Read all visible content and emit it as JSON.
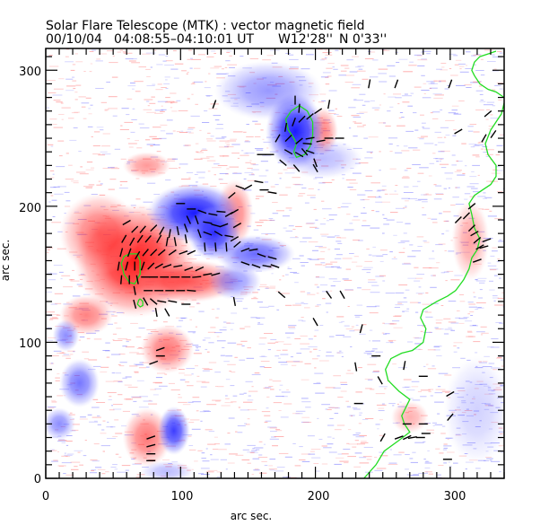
{
  "chart_data": {
    "type": "heatmap",
    "title": "Solar Flare Telescope (MTK) : vector magnetic field",
    "subtitle": {
      "date": "00/10/04",
      "time_range": "04:08:55–04:10:01 UT",
      "position_w": "W12'28''",
      "position_n": "N 0'33''"
    },
    "xlabel": "arc sec.",
    "ylabel": "arc sec.",
    "xlim": [
      0,
      340
    ],
    "ylim": [
      0,
      316
    ],
    "xticks": [
      0,
      100,
      200,
      300
    ],
    "yticks": [
      0,
      100,
      200,
      300
    ],
    "xtick_labels": [
      "0",
      "100",
      "200",
      "300"
    ],
    "ytick_labels": [
      "0",
      "100",
      "200",
      "300"
    ],
    "minor_tick_step": 10,
    "colors": {
      "positive_polarity": "#ff2020",
      "negative_polarity": "#2020ff",
      "contour": "#22dd22",
      "vector": "#000000"
    },
    "polarity_regions": [
      {
        "polarity": "positive",
        "x": 66,
        "y": 160,
        "rx": 45,
        "ry": 42,
        "strength": 1.0
      },
      {
        "polarity": "positive",
        "x": 40,
        "y": 180,
        "rx": 30,
        "ry": 30,
        "strength": 0.6
      },
      {
        "polarity": "positive",
        "x": 105,
        "y": 145,
        "rx": 40,
        "ry": 16,
        "strength": 0.75
      },
      {
        "polarity": "positive",
        "x": 30,
        "y": 120,
        "rx": 20,
        "ry": 15,
        "strength": 0.55
      },
      {
        "polarity": "positive",
        "x": 75,
        "y": 230,
        "rx": 18,
        "ry": 10,
        "strength": 0.45
      },
      {
        "polarity": "positive",
        "x": 90,
        "y": 95,
        "rx": 20,
        "ry": 18,
        "strength": 0.6
      },
      {
        "polarity": "positive",
        "x": 75,
        "y": 30,
        "rx": 18,
        "ry": 22,
        "strength": 0.6
      },
      {
        "polarity": "positive",
        "x": 140,
        "y": 195,
        "rx": 14,
        "ry": 25,
        "strength": 0.55
      },
      {
        "polarity": "positive",
        "x": 205,
        "y": 255,
        "rx": 12,
        "ry": 18,
        "strength": 0.55
      },
      {
        "polarity": "positive",
        "x": 315,
        "y": 175,
        "rx": 14,
        "ry": 30,
        "strength": 0.4
      },
      {
        "polarity": "positive",
        "x": 270,
        "y": 45,
        "rx": 14,
        "ry": 12,
        "strength": 0.35
      },
      {
        "polarity": "negative",
        "x": 110,
        "y": 195,
        "rx": 35,
        "ry": 22,
        "strength": 1.0
      },
      {
        "polarity": "negative",
        "x": 125,
        "y": 180,
        "rx": 20,
        "ry": 20,
        "strength": 0.9
      },
      {
        "polarity": "negative",
        "x": 185,
        "y": 255,
        "rx": 22,
        "ry": 28,
        "strength": 1.0
      },
      {
        "polarity": "negative",
        "x": 165,
        "y": 285,
        "rx": 40,
        "ry": 22,
        "strength": 0.45
      },
      {
        "polarity": "negative",
        "x": 155,
        "y": 165,
        "rx": 30,
        "ry": 14,
        "strength": 0.65
      },
      {
        "polarity": "negative",
        "x": 140,
        "y": 145,
        "rx": 20,
        "ry": 14,
        "strength": 0.45
      },
      {
        "polarity": "negative",
        "x": 95,
        "y": 35,
        "rx": 12,
        "ry": 18,
        "strength": 0.85
      },
      {
        "polarity": "negative",
        "x": 25,
        "y": 70,
        "rx": 15,
        "ry": 18,
        "strength": 0.6
      },
      {
        "polarity": "negative",
        "x": 15,
        "y": 105,
        "rx": 10,
        "ry": 12,
        "strength": 0.5
      },
      {
        "polarity": "negative",
        "x": 10,
        "y": 40,
        "rx": 12,
        "ry": 12,
        "strength": 0.5
      },
      {
        "polarity": "negative",
        "x": 205,
        "y": 235,
        "rx": 30,
        "ry": 15,
        "strength": 0.3
      },
      {
        "polarity": "negative",
        "x": 320,
        "y": 50,
        "rx": 25,
        "ry": 40,
        "strength": 0.2
      },
      {
        "polarity": "negative",
        "x": 90,
        "y": 5,
        "rx": 20,
        "ry": 8,
        "strength": 0.3
      }
    ],
    "vectors": [
      [
        60,
        188,
        30
      ],
      [
        66,
        183,
        45
      ],
      [
        72,
        183,
        50
      ],
      [
        80,
        184,
        45
      ],
      [
        86,
        182,
        60
      ],
      [
        92,
        180,
        80
      ],
      [
        98,
        182,
        100
      ],
      [
        58,
        176,
        60
      ],
      [
        64,
        174,
        60
      ],
      [
        70,
        176,
        55
      ],
      [
        76,
        176,
        50
      ],
      [
        84,
        176,
        60
      ],
      [
        90,
        174,
        80
      ],
      [
        96,
        174,
        100
      ],
      [
        104,
        176,
        100
      ],
      [
        56,
        166,
        75
      ],
      [
        62,
        166,
        70
      ],
      [
        68,
        164,
        60
      ],
      [
        74,
        166,
        50
      ],
      [
        80,
        166,
        45
      ],
      [
        86,
        166,
        40
      ],
      [
        94,
        166,
        35
      ],
      [
        102,
        166,
        20
      ],
      [
        108,
        166,
        25
      ],
      [
        54,
        156,
        80
      ],
      [
        60,
        156,
        75
      ],
      [
        66,
        156,
        90
      ],
      [
        72,
        156,
        70
      ],
      [
        78,
        156,
        45
      ],
      [
        84,
        156,
        30
      ],
      [
        90,
        156,
        20
      ],
      [
        98,
        156,
        10
      ],
      [
        106,
        154,
        20
      ],
      [
        114,
        154,
        25
      ],
      [
        56,
        146,
        85
      ],
      [
        62,
        146,
        90
      ],
      [
        68,
        146,
        100
      ],
      [
        74,
        148,
        0
      ],
      [
        80,
        148,
        0
      ],
      [
        88,
        148,
        0
      ],
      [
        96,
        148,
        0
      ],
      [
        104,
        148,
        0
      ],
      [
        112,
        148,
        5
      ],
      [
        120,
        150,
        10
      ],
      [
        126,
        150,
        15
      ],
      [
        66,
        138,
        100
      ],
      [
        76,
        138,
        0
      ],
      [
        84,
        138,
        0
      ],
      [
        92,
        138,
        0
      ],
      [
        100,
        138,
        0
      ],
      [
        108,
        138,
        -5
      ],
      [
        66,
        128,
        105
      ],
      [
        74,
        130,
        120
      ],
      [
        80,
        130,
        140
      ],
      [
        86,
        130,
        -10
      ],
      [
        94,
        130,
        -10
      ],
      [
        104,
        128,
        0
      ],
      [
        82,
        122,
        100
      ],
      [
        90,
        122,
        120
      ],
      [
        100,
        202,
        0
      ],
      [
        108,
        198,
        0
      ],
      [
        116,
        196,
        -20
      ],
      [
        124,
        194,
        -10
      ],
      [
        130,
        196,
        -5
      ],
      [
        136,
        194,
        30
      ],
      [
        106,
        190,
        115
      ],
      [
        112,
        190,
        110
      ],
      [
        120,
        188,
        -10
      ],
      [
        126,
        186,
        -15
      ],
      [
        132,
        186,
        20
      ],
      [
        104,
        184,
        110
      ],
      [
        114,
        180,
        110
      ],
      [
        120,
        180,
        -20
      ],
      [
        128,
        180,
        -30
      ],
      [
        136,
        178,
        -10
      ],
      [
        118,
        170,
        95
      ],
      [
        126,
        170,
        95
      ],
      [
        134,
        170,
        95
      ],
      [
        142,
        172,
        40
      ],
      [
        148,
        168,
        20
      ],
      [
        154,
        168,
        10
      ],
      [
        160,
        164,
        -20
      ],
      [
        168,
        162,
        -15
      ],
      [
        148,
        158,
        -20
      ],
      [
        156,
        156,
        -20
      ],
      [
        164,
        156,
        -10
      ],
      [
        170,
        156,
        -20
      ],
      [
        140,
        196,
        30
      ],
      [
        138,
        208,
        40
      ],
      [
        144,
        214,
        -20
      ],
      [
        150,
        214,
        30
      ],
      [
        162,
        212,
        0
      ],
      [
        168,
        210,
        -10
      ],
      [
        140,
        176,
        30
      ],
      [
        142,
        186,
        30
      ],
      [
        178,
        258,
        80
      ],
      [
        184,
        262,
        70
      ],
      [
        190,
        264,
        45
      ],
      [
        196,
        266,
        40
      ],
      [
        202,
        270,
        35
      ],
      [
        172,
        250,
        60
      ],
      [
        180,
        250,
        45
      ],
      [
        188,
        248,
        40
      ],
      [
        196,
        250,
        10
      ],
      [
        204,
        248,
        10
      ],
      [
        180,
        240,
        -30
      ],
      [
        188,
        238,
        -30
      ],
      [
        196,
        240,
        -20
      ],
      [
        200,
        232,
        -70
      ],
      [
        188,
        272,
        85
      ],
      [
        194,
        246,
        -5
      ],
      [
        176,
        232,
        -40
      ],
      [
        186,
        228,
        -50
      ],
      [
        200,
        228,
        -60
      ],
      [
        160,
        238,
        0
      ],
      [
        166,
        238,
        0
      ],
      [
        210,
        250,
        0
      ],
      [
        218,
        250,
        0
      ],
      [
        158,
        218,
        -10
      ],
      [
        85,
        95,
        20
      ],
      [
        85,
        90,
        0
      ],
      [
        80,
        85,
        20
      ],
      [
        78,
        30,
        20
      ],
      [
        78,
        24,
        15
      ],
      [
        78,
        18,
        0
      ],
      [
        78,
        13,
        0
      ],
      [
        125,
        275,
        70
      ],
      [
        185,
        278,
        90
      ],
      [
        192,
        240,
        -50
      ],
      [
        175,
        135,
        -40
      ],
      [
        210,
        135,
        -55
      ],
      [
        220,
        135,
        -60
      ],
      [
        140,
        130,
        -80
      ],
      [
        200,
        115,
        -60
      ],
      [
        266,
        83,
        80
      ],
      [
        210,
        275,
        80
      ],
      [
        230,
        82,
        -80
      ],
      [
        245,
        90,
        0
      ],
      [
        280,
        75,
        0
      ],
      [
        262,
        30,
        20
      ],
      [
        268,
        30,
        25
      ],
      [
        272,
        30,
        10
      ],
      [
        278,
        30,
        0
      ],
      [
        282,
        33,
        0
      ],
      [
        268,
        40,
        0
      ],
      [
        280,
        40,
        0
      ],
      [
        300,
        62,
        30
      ],
      [
        300,
        45,
        50
      ],
      [
        234,
        110,
        75
      ],
      [
        248,
        72,
        -60
      ],
      [
        298,
        14,
        0
      ],
      [
        320,
        160,
        20
      ],
      [
        322,
        170,
        30
      ],
      [
        318,
        180,
        30
      ],
      [
        320,
        175,
        40
      ],
      [
        316,
        184,
        45
      ],
      [
        325,
        170,
        15
      ],
      [
        327,
        175,
        20
      ],
      [
        316,
        200,
        40
      ],
      [
        312,
        193,
        45
      ],
      [
        306,
        190,
        45
      ],
      [
        332,
        253,
        55
      ],
      [
        325,
        250,
        60
      ],
      [
        328,
        268,
        40
      ],
      [
        306,
        255,
        30
      ],
      [
        300,
        290,
        70
      ],
      [
        260,
        290,
        70
      ],
      [
        240,
        290,
        80
      ],
      [
        232,
        55,
        0
      ],
      [
        250,
        30,
        60
      ]
    ],
    "contours": [
      {
        "label": "limb",
        "points": [
          [
            236,
            0
          ],
          [
            245,
            10
          ],
          [
            251,
            20
          ],
          [
            262,
            28
          ],
          [
            270,
            34
          ],
          [
            266,
            40
          ],
          [
            264,
            46
          ],
          [
            270,
            58
          ],
          [
            262,
            64
          ],
          [
            254,
            72
          ],
          [
            252,
            80
          ],
          [
            256,
            88
          ],
          [
            264,
            92
          ],
          [
            272,
            94
          ],
          [
            280,
            100
          ],
          [
            282,
            110
          ],
          [
            278,
            118
          ],
          [
            280,
            124
          ],
          [
            290,
            130
          ],
          [
            298,
            134
          ],
          [
            304,
            138
          ],
          [
            310,
            146
          ],
          [
            314,
            154
          ],
          [
            316,
            162
          ],
          [
            320,
            168
          ],
          [
            322,
            176
          ],
          [
            318,
            184
          ],
          [
            316,
            194
          ],
          [
            314,
            202
          ],
          [
            318,
            208
          ],
          [
            324,
            212
          ],
          [
            330,
            216
          ],
          [
            334,
            222
          ],
          [
            334,
            230
          ],
          [
            328,
            238
          ],
          [
            326,
            246
          ],
          [
            330,
            256
          ],
          [
            334,
            262
          ],
          [
            338,
            268
          ],
          [
            340,
            276
          ]
        ]
      },
      {
        "label": "limb-upper",
        "points": [
          [
            340,
            280
          ],
          [
            334,
            284
          ],
          [
            328,
            286
          ],
          [
            322,
            290
          ],
          [
            318,
            296
          ],
          [
            316,
            300
          ],
          [
            318,
            306
          ],
          [
            322,
            310
          ],
          [
            328,
            312
          ],
          [
            334,
            314
          ]
        ]
      },
      {
        "label": "neutral",
        "points": [
          [
            62,
            165
          ],
          [
            68,
            165
          ],
          [
            70,
            160
          ],
          [
            70,
            150
          ],
          [
            66,
            143
          ],
          [
            62,
            144
          ],
          [
            58,
            150
          ],
          [
            56,
            158
          ],
          [
            58,
            163
          ],
          [
            62,
            165
          ]
        ]
      },
      {
        "label": "neutral-small",
        "points": [
          [
            70,
            132
          ],
          [
            72,
            130
          ],
          [
            72,
            127
          ],
          [
            70,
            126
          ],
          [
            68,
            128
          ],
          [
            69,
            131
          ],
          [
            70,
            132
          ]
        ]
      },
      {
        "label": "blue-spot",
        "points": [
          [
            186,
            246
          ],
          [
            184,
            250
          ],
          [
            180,
            256
          ],
          [
            178,
            264
          ],
          [
            182,
            270
          ],
          [
            188,
            274
          ],
          [
            194,
            270
          ],
          [
            198,
            262
          ],
          [
            198,
            252
          ],
          [
            196,
            244
          ],
          [
            192,
            238
          ],
          [
            186,
            236
          ],
          [
            184,
            240
          ],
          [
            186,
            246
          ]
        ]
      }
    ]
  }
}
